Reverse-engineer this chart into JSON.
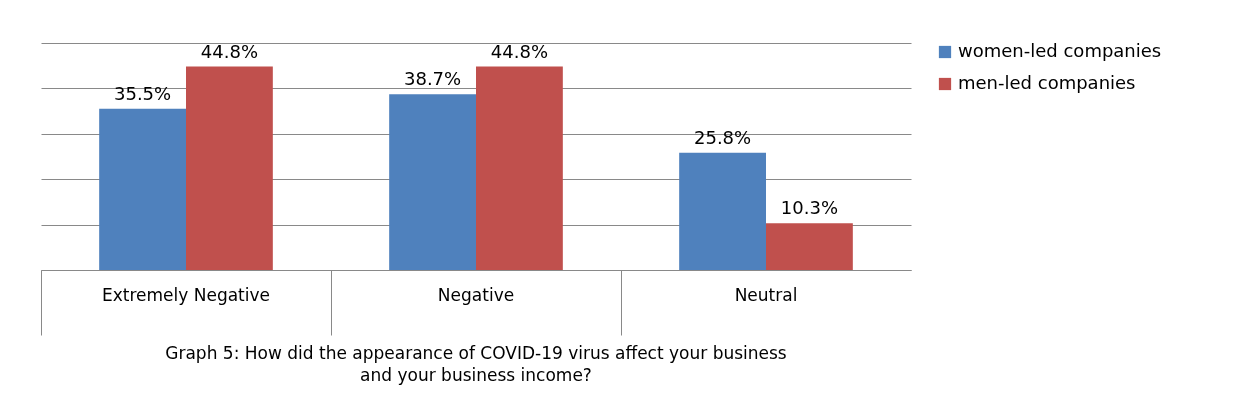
{
  "chart_data": {
    "type": "bar",
    "title": "Graph 5: How did the appearance of COVID-19 virus affect your business and your business income?",
    "categories": [
      "Extremely Negative",
      "Negative",
      "Neutral"
    ],
    "series": [
      {
        "name": "women-led companies",
        "color": "#4f81bd",
        "values": [
          35.5,
          38.7,
          25.8
        ],
        "value_labels": [
          "35.5%",
          "38.7%",
          "25.8%"
        ]
      },
      {
        "name": "men-led companies",
        "color": "#c0504d",
        "values": [
          44.8,
          44.8,
          10.3
        ],
        "value_labels": [
          "44.8%",
          "44.8%",
          "10.3%"
        ]
      }
    ],
    "ylim": [
      0,
      50
    ],
    "yticks": [
      0,
      10,
      20,
      30,
      40,
      50
    ],
    "tick_labels": "x",
    "grid": "y",
    "legend": "right"
  }
}
